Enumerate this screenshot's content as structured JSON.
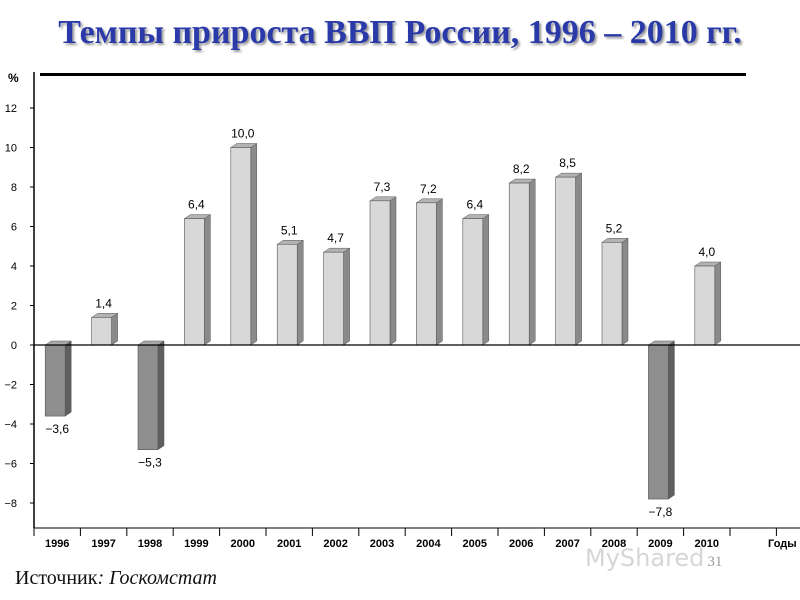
{
  "header": {
    "title": "Темпы прироста ВВП России, 1996 – 2010 гг."
  },
  "footer": {
    "source_label": "Источник",
    "source_value": ": Госкомстат",
    "watermark": "MyShared",
    "page_number": "31"
  },
  "colors": {
    "title": "#2a3aa8",
    "positive_bar": "#d8d8d8",
    "negative_bar": "#8e8e8e"
  },
  "chart_data": {
    "type": "bar",
    "title": "",
    "ylabel": "%",
    "xlabel": "Годы",
    "ylim": [
      -10,
      13
    ],
    "yticks": [
      12,
      10,
      8,
      6,
      4,
      2,
      0,
      -2,
      -4,
      -6,
      -8
    ],
    "ytick_labels": [
      "12",
      "10",
      "8",
      "6",
      "4",
      "2",
      "0",
      "−2",
      "−4",
      "−6",
      "−8"
    ],
    "grid": false,
    "categories": [
      "1996",
      "1997",
      "1998",
      "1999",
      "2000",
      "2001",
      "2002",
      "2003",
      "2004",
      "2005",
      "2006",
      "2007",
      "2008",
      "2009",
      "2010"
    ],
    "values": [
      -3.6,
      1.4,
      -5.3,
      6.4,
      10.0,
      5.1,
      4.7,
      7.3,
      7.2,
      6.4,
      8.2,
      8.5,
      5.2,
      -7.8,
      4.0
    ],
    "data_labels": [
      "−3,6",
      "1,4",
      "−5,3",
      "6,4",
      "10,0",
      "5,1",
      "4,7",
      "7,3",
      "7,2",
      "6,4",
      "8,2",
      "8,5",
      "5,2",
      "−7,8",
      "4,0"
    ]
  }
}
